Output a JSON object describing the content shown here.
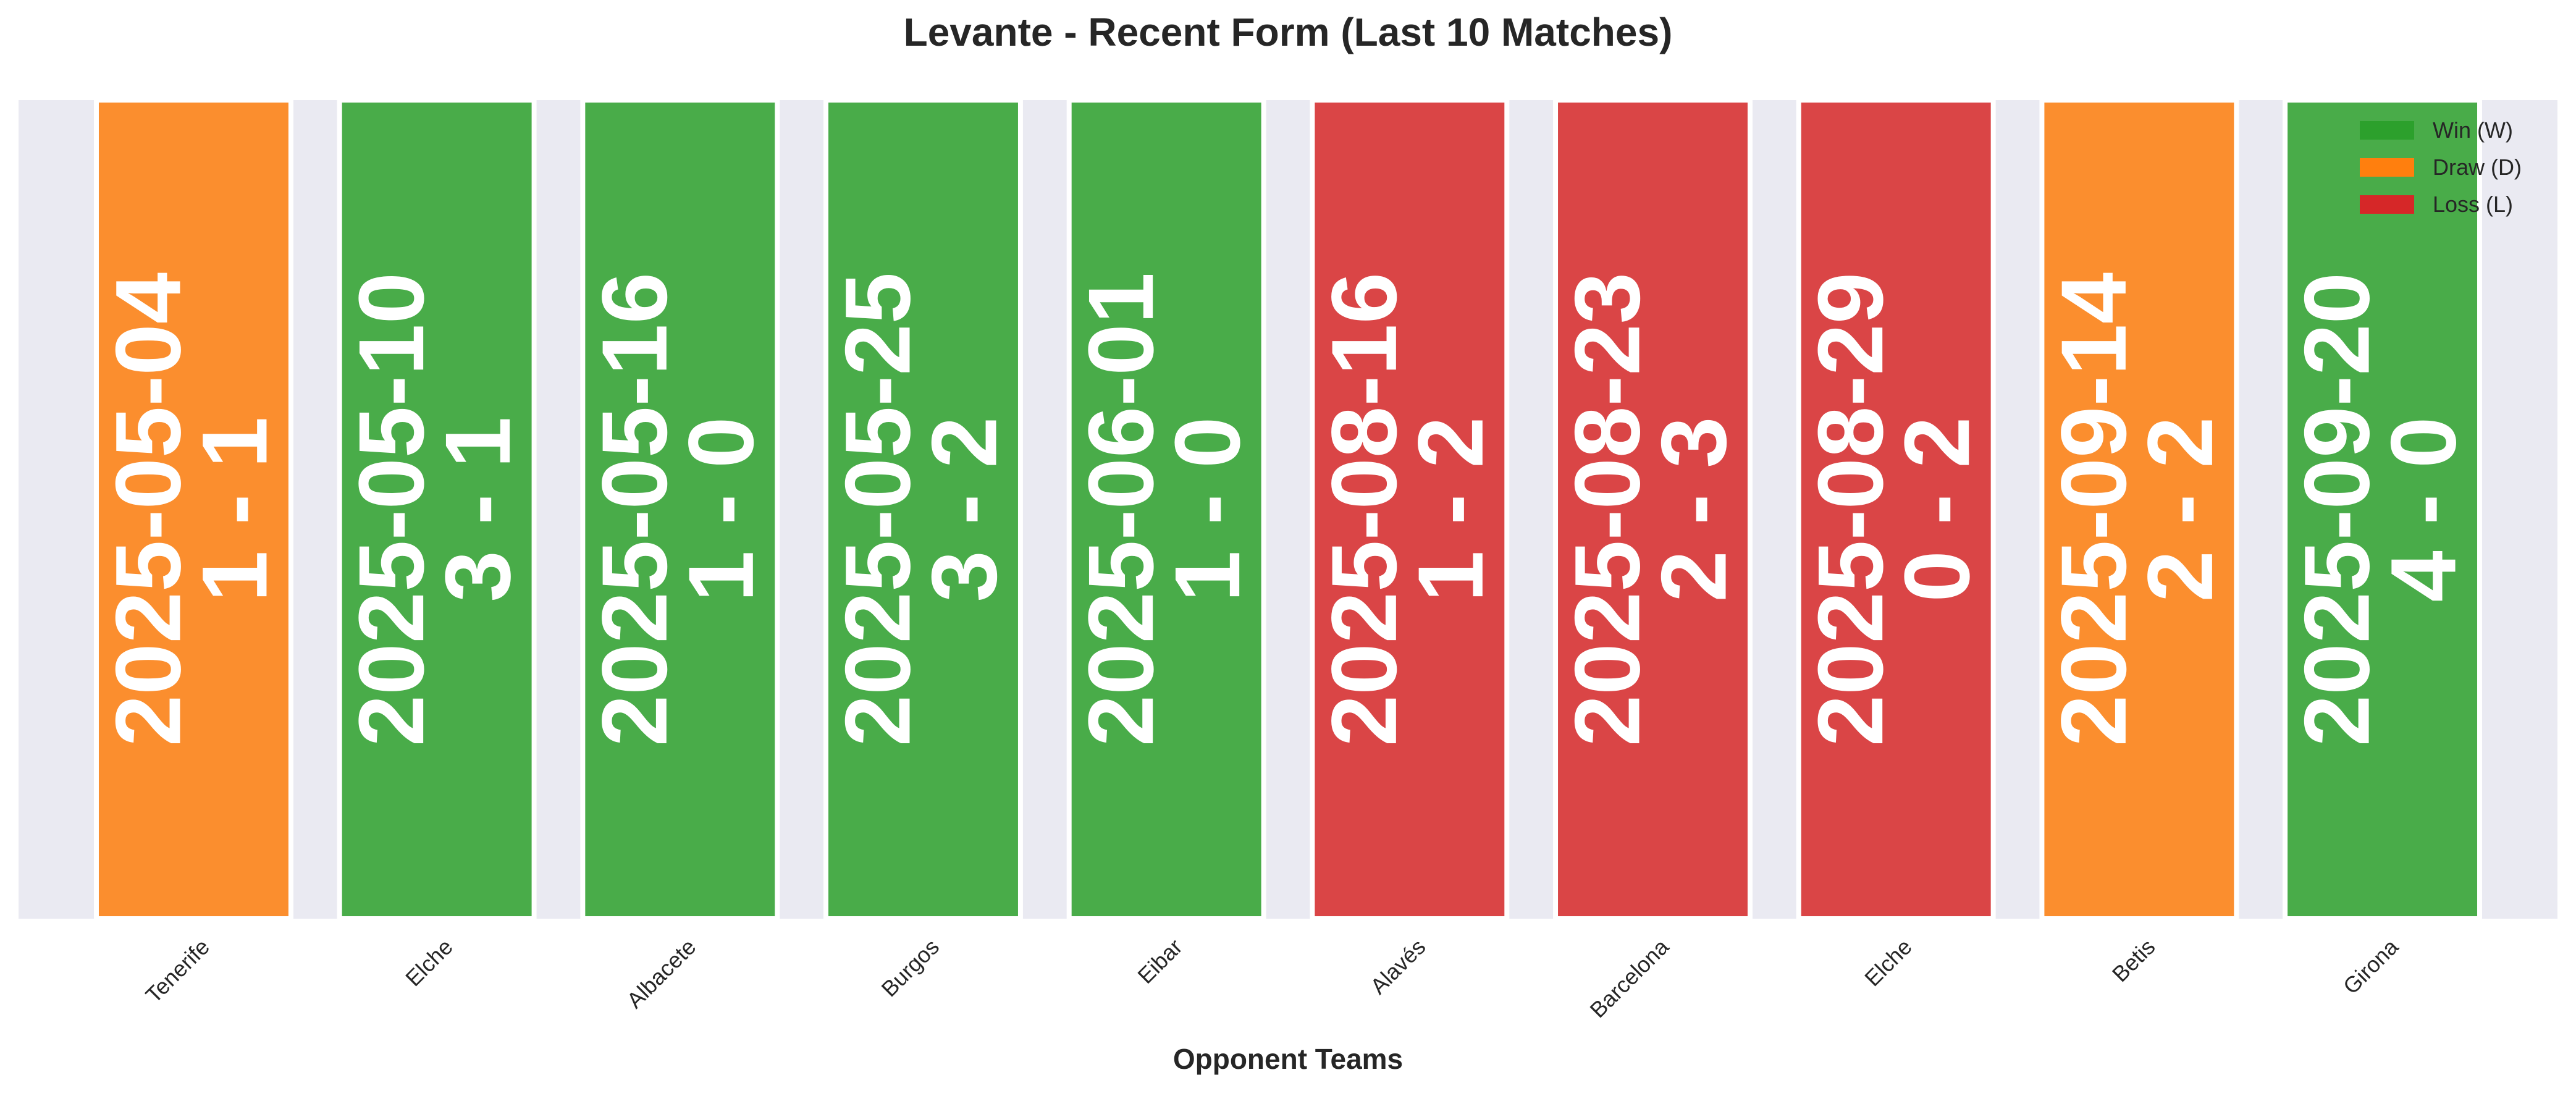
{
  "chart_data": {
    "type": "bar",
    "title": "Levante - Recent Form (Last 10 Matches)",
    "xlabel": "Opponent Teams",
    "ylabel": "",
    "categories": [
      "Tenerife",
      "Elche",
      "Albacete",
      "Burgos",
      "Eibar",
      "Alavés",
      "Barcelona",
      "Elche",
      "Betis",
      "Girona"
    ],
    "dates": [
      "2025-05-04",
      "2025-05-10",
      "2025-05-16",
      "2025-05-25",
      "2025-06-01",
      "2025-08-16",
      "2025-08-23",
      "2025-08-29",
      "2025-09-14",
      "2025-09-20"
    ],
    "scores": [
      "1 - 1",
      "3 - 1",
      "1 - 0",
      "3 - 2",
      "1 - 0",
      "1 - 2",
      "2 - 3",
      "0 - 2",
      "2 - 2",
      "4 - 0"
    ],
    "results": [
      "D",
      "W",
      "W",
      "W",
      "W",
      "L",
      "L",
      "L",
      "D",
      "W"
    ],
    "values": [
      1,
      1,
      1,
      1,
      1,
      1,
      1,
      1,
      1,
      1
    ],
    "legend": {
      "position": "top-right",
      "entries": [
        {
          "key": "W",
          "label": "Win (W)",
          "color": "#2ca02c"
        },
        {
          "key": "D",
          "label": "Draw (D)",
          "color": "#ff7f0e"
        },
        {
          "key": "L",
          "label": "Loss (L)",
          "color": "#d62728"
        }
      ]
    },
    "bar_colors": {
      "W": "#49ac49",
      "D": "#fb8e2e",
      "L": "#da4546"
    },
    "background_color": "#eaeaf2",
    "grid": false
  }
}
